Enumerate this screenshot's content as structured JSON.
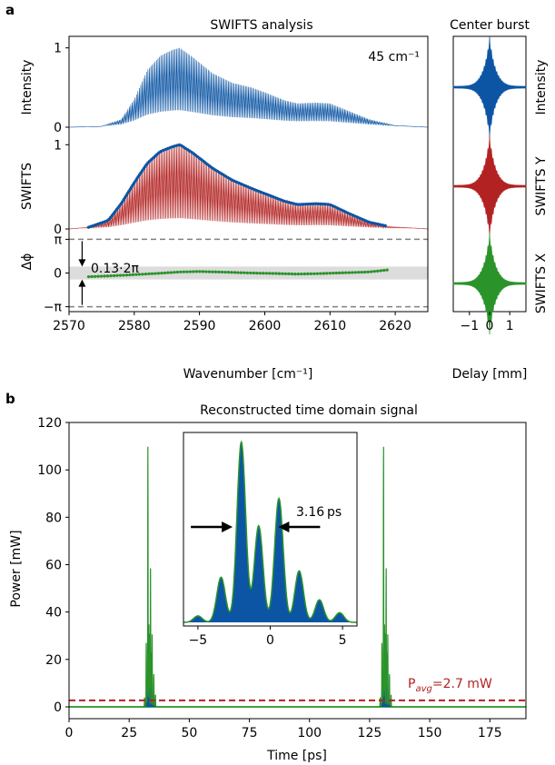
{
  "panel_labels": {
    "a": "a",
    "b": "b"
  },
  "colors": {
    "blue": "#0c55a4",
    "red": "#b22222",
    "green": "#2a932a",
    "dashed": "#808080",
    "band": "#dcdcdc"
  },
  "chart_data": [
    {
      "id": "swifts_analysis",
      "type": "line",
      "title": "SWIFTS analysis",
      "xlabel": "Wavenumber [cm⁻¹]",
      "xlim": [
        2570,
        2625
      ],
      "xticks": [
        "2570",
        "2580",
        "2590",
        "2600",
        "2610",
        "2620"
      ],
      "annotation": "45 cm⁻¹",
      "subplots": [
        {
          "ylabel": "Intensity",
          "yticks": [
            "0",
            "1"
          ],
          "ylim": [
            0,
            1.1
          ],
          "series": [
            {
              "style": "comb",
              "color": "blue",
              "envelope_x": [
                2570,
                2575,
                2578,
                2580,
                2582,
                2584,
                2586,
                2587,
                2589,
                2592,
                2595,
                2598,
                2600,
                2603,
                2605,
                2608,
                2610,
                2613,
                2616,
                2620,
                2625
              ],
              "envelope_y": [
                0,
                0.01,
                0.1,
                0.35,
                0.72,
                0.9,
                0.98,
                1.0,
                0.88,
                0.68,
                0.56,
                0.5,
                0.44,
                0.34,
                0.3,
                0.31,
                0.3,
                0.2,
                0.1,
                0.02,
                0
              ],
              "floor_y": 0.05
            }
          ]
        },
        {
          "ylabel": "SWIFTS",
          "yticks": [
            "0",
            "1"
          ],
          "ylim": [
            0,
            1.1
          ],
          "series": [
            {
              "style": "comb",
              "color": "red",
              "envelope_x": [
                2570,
                2573,
                2576,
                2578,
                2580,
                2582,
                2584,
                2586,
                2587,
                2589,
                2592,
                2595,
                2598,
                2600,
                2603,
                2605,
                2608,
                2610,
                2613,
                2616,
                2619,
                2625
              ],
              "envelope_y": [
                0,
                0.02,
                0.1,
                0.3,
                0.55,
                0.78,
                0.92,
                0.98,
                1.0,
                0.9,
                0.72,
                0.58,
                0.48,
                0.42,
                0.33,
                0.29,
                0.3,
                0.29,
                0.18,
                0.08,
                0.03,
                0
              ],
              "floor_y": 0.03
            },
            {
              "style": "dots",
              "color": "blue",
              "x_range": [
                2573,
                2619
              ]
            }
          ]
        },
        {
          "ylabel": "Δϕ",
          "yticks": [
            "−π",
            "0",
            "π"
          ],
          "ylim": [
            -3.6,
            3.6
          ],
          "series": [
            {
              "style": "dots",
              "color": "green",
              "x": [
                2573,
                2575,
                2578,
                2581,
                2584,
                2587,
                2590,
                2594,
                2598,
                2602,
                2605,
                2608,
                2612,
                2616,
                2619
              ],
              "y": [
                -0.35,
                -0.3,
                -0.22,
                -0.12,
                -0.02,
                0.1,
                0.14,
                0.08,
                0.0,
                -0.05,
                -0.1,
                -0.06,
                0.02,
                0.1,
                0.3
              ]
            }
          ],
          "annotation": "0.13·2π"
        }
      ]
    },
    {
      "id": "center_burst",
      "type": "line",
      "title": "Center burst",
      "xlabel": "Delay [mm]",
      "xlim": [
        -1.8,
        1.8
      ],
      "xticks": [
        "−1",
        "0",
        "1"
      ],
      "series": [
        {
          "name": "Intensity",
          "color": "blue"
        },
        {
          "name": "SWIFTS Y",
          "color": "red"
        },
        {
          "name": "SWIFTS X",
          "color": "green"
        }
      ]
    },
    {
      "id": "time_domain",
      "type": "area",
      "title": "Reconstructed time domain signal",
      "xlabel": "Time [ps]",
      "ylabel": "Power [mW]",
      "xlim": [
        0,
        190
      ],
      "ylim": [
        -5,
        120
      ],
      "xticks": [
        "0",
        "25",
        "50",
        "75",
        "100",
        "125",
        "150",
        "175"
      ],
      "yticks": [
        "0",
        "20",
        "40",
        "60",
        "80",
        "100",
        "120"
      ],
      "avg_line": {
        "value": 2.7,
        "label_main": "P",
        "label_sub": "avg",
        "label_rest": "=2.7 mW"
      },
      "pulse_centers": [
        33.5,
        131.5
      ],
      "inset": {
        "xlim": [
          -6,
          6
        ],
        "xticks": [
          "−5",
          "0",
          "5"
        ],
        "annotation": "3.16 ps",
        "peaks": [
          {
            "x": -5,
            "y": 4
          },
          {
            "x": -3.4,
            "y": 28
          },
          {
            "x": -2,
            "y": 112
          },
          {
            "x": -0.8,
            "y": 60
          },
          {
            "x": 0.6,
            "y": 77
          },
          {
            "x": 2,
            "y": 32
          },
          {
            "x": 3.4,
            "y": 14
          },
          {
            "x": 4.8,
            "y": 6
          }
        ]
      }
    }
  ]
}
